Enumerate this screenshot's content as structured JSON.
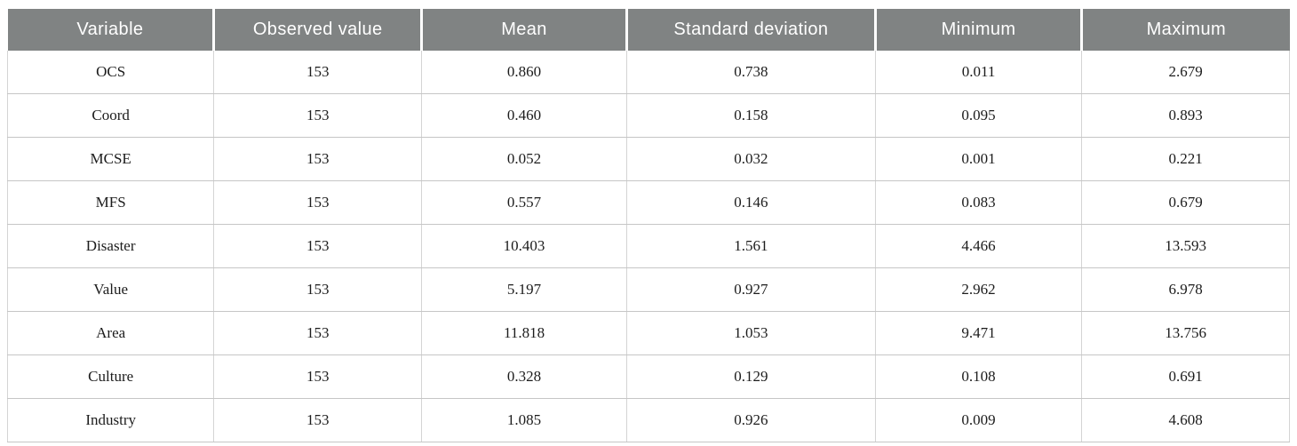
{
  "table": {
    "columns": [
      "Variable",
      "Observed value",
      "Mean",
      "Standard deviation",
      "Minimum",
      "Maximum"
    ],
    "rows": [
      {
        "cells": [
          "OCS",
          "153",
          "0.860",
          "0.738",
          "0.011",
          "2.679"
        ]
      },
      {
        "cells": [
          "Coord",
          "153",
          "0.460",
          "0.158",
          "0.095",
          "0.893"
        ]
      },
      {
        "cells": [
          "MCSE",
          "153",
          "0.052",
          "0.032",
          "0.001",
          "0.221"
        ]
      },
      {
        "cells": [
          "MFS",
          "153",
          "0.557",
          "0.146",
          "0.083",
          "0.679"
        ]
      },
      {
        "cells": [
          "Disaster",
          "153",
          "10.403",
          "1.561",
          "4.466",
          "13.593"
        ]
      },
      {
        "cells": [
          "Value",
          "153",
          "5.197",
          "0.927",
          "2.962",
          "6.978"
        ]
      },
      {
        "cells": [
          "Area",
          "153",
          "11.818",
          "1.053",
          "9.471",
          "13.756"
        ]
      },
      {
        "cells": [
          "Culture",
          "153",
          "0.328",
          "0.129",
          "0.108",
          "0.691"
        ]
      },
      {
        "cells": [
          "Industry",
          "153",
          "1.085",
          "0.926",
          "0.009",
          "4.608"
        ]
      }
    ]
  },
  "colors": {
    "header_background": "#808383",
    "header_text": "#ffffff",
    "row_border": "#c6c6c6",
    "column_border": "#d4d4d4",
    "body_text": "#1c1c1c"
  }
}
